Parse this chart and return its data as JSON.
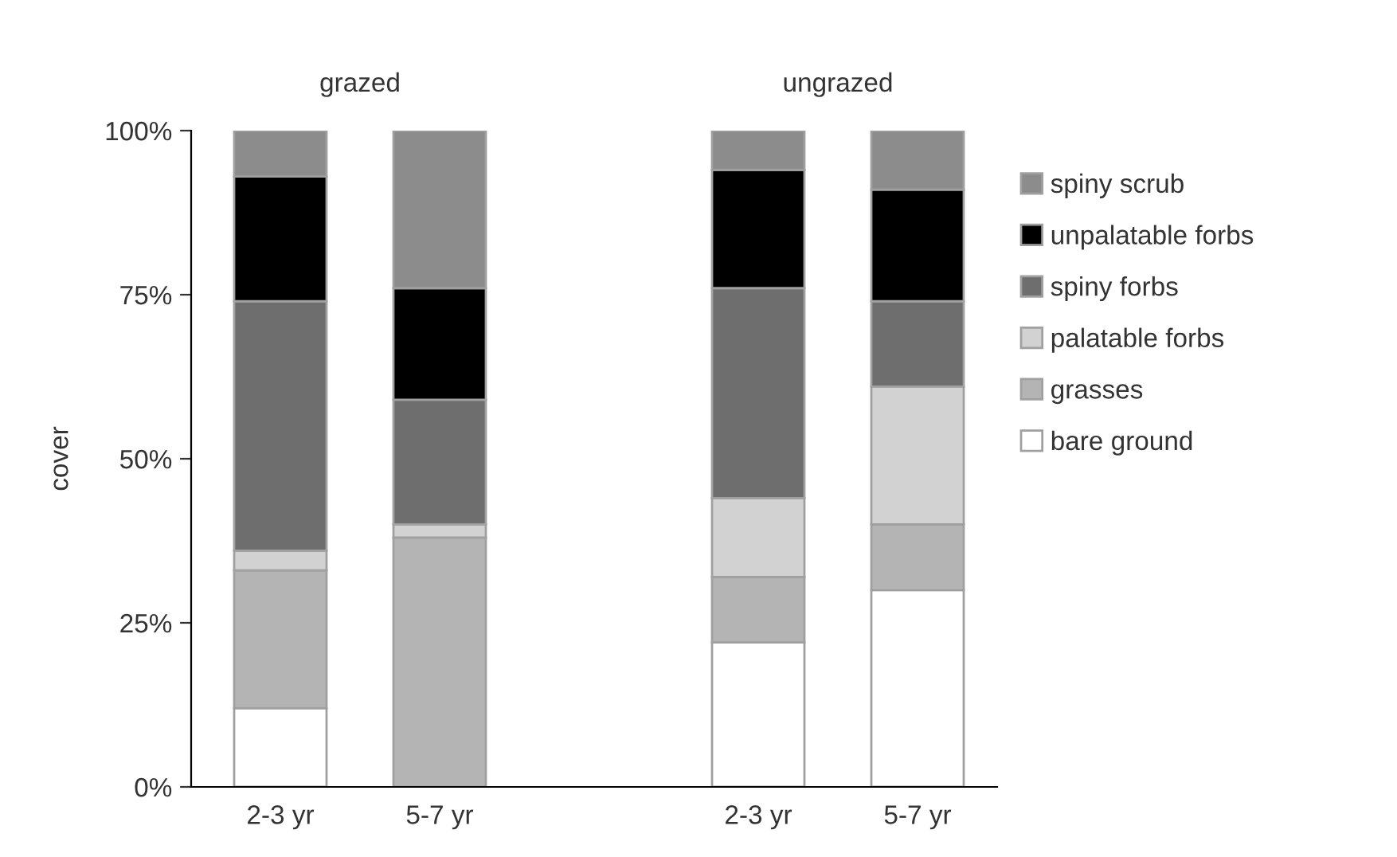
{
  "chart_data": {
    "type": "bar",
    "stacked": true,
    "ylabel": "cover",
    "categories": [
      "2-3 yr",
      "5-7 yr",
      null,
      "2-3 yr",
      "5-7 yr"
    ],
    "series": [
      {
        "name": "bare ground",
        "color": "#ffffff",
        "values": [
          12,
          0,
          null,
          22,
          30
        ]
      },
      {
        "name": "grasses",
        "color": "#b4b4b4",
        "values": [
          21,
          38,
          null,
          10,
          10
        ]
      },
      {
        "name": "palatable forbs",
        "color": "#d2d2d2",
        "values": [
          3,
          2,
          null,
          12,
          21
        ]
      },
      {
        "name": "spiny forbs",
        "color": "#6e6e6e",
        "values": [
          38,
          19,
          null,
          32,
          13
        ]
      },
      {
        "name": "unpalatable forbs",
        "color": "#000000",
        "values": [
          19,
          17,
          null,
          18,
          17
        ]
      },
      {
        "name": "spiny scrub",
        "color": "#8c8c8c",
        "values": [
          7,
          24,
          null,
          6,
          9
        ]
      }
    ],
    "ylim": [
      0,
      100
    ],
    "yticks": [
      {
        "value": 0,
        "label": "0%"
      },
      {
        "value": 25,
        "label": "25%"
      },
      {
        "value": 50,
        "label": "50%"
      },
      {
        "value": 75,
        "label": "75%"
      },
      {
        "value": 100,
        "label": "100%"
      }
    ],
    "annotations": [
      "grazed",
      "ungrazed"
    ],
    "legend": "right",
    "grid": false
  }
}
